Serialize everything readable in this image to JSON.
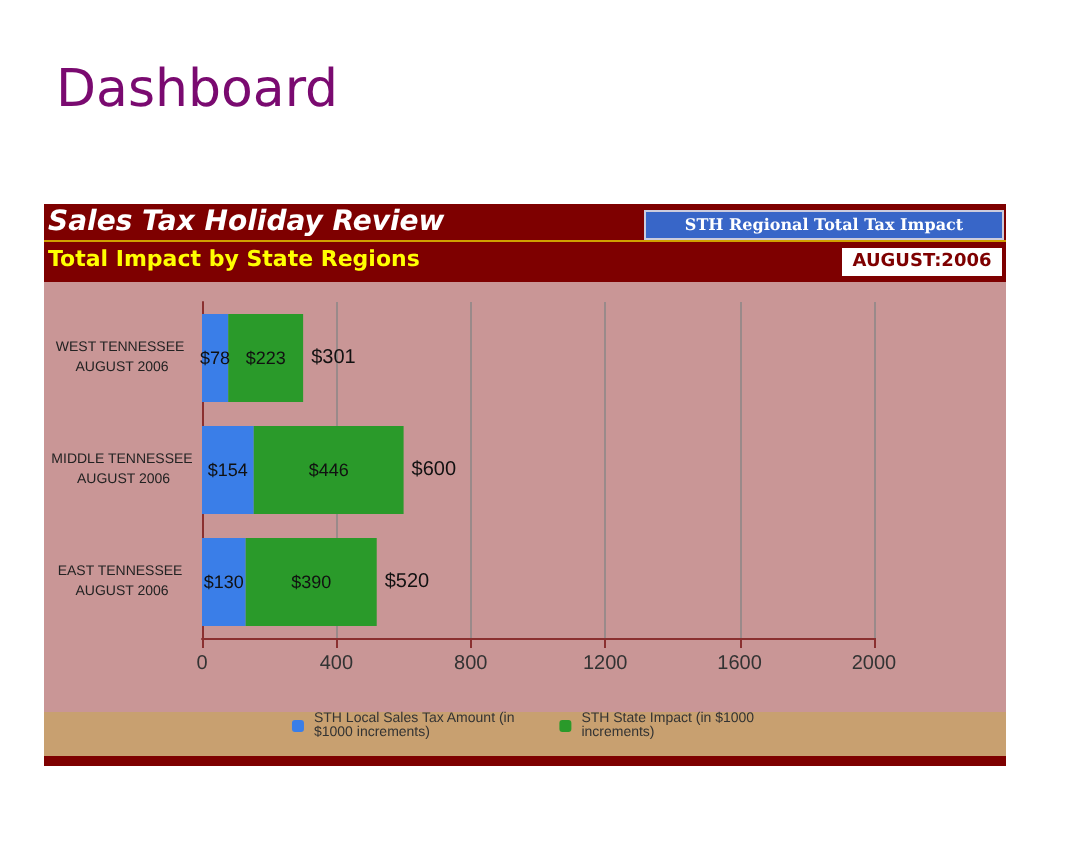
{
  "chart_data": {
    "type": "bar",
    "orientation": "horizontal",
    "stacked": true,
    "title": "Sales Tax Holiday Review",
    "subtitle": "Total Impact by State Regions",
    "annotations": [
      "Dashboard",
      "STH Regional Total Tax Impact",
      "AUGUST:2006"
    ],
    "categories": [
      "WEST TENNESSEE AUGUST 2006",
      "MIDDLE TENNESSEE AUGUST 2006",
      "EAST TENNESSEE AUGUST 2006"
    ],
    "series": [
      {
        "name": "STH Local Sales Tax Amount (in $1000 increments)",
        "color": "#3a7ee8",
        "values": [
          78,
          154,
          130
        ],
        "value_labels": [
          "$78",
          "$154",
          "$130"
        ]
      },
      {
        "name": "STH State Impact (in $1000 increments)",
        "color": "#2a9a2a",
        "values": [
          223,
          446,
          390
        ],
        "value_labels": [
          "$223",
          "$446",
          "$390"
        ]
      }
    ],
    "totals": [
      "$301",
      "$600",
      "$520"
    ],
    "xlim": [
      0,
      2000
    ],
    "xticks": [
      0,
      400,
      800,
      1200,
      1600,
      2000
    ],
    "grid": "x",
    "legend": "bottom"
  }
}
